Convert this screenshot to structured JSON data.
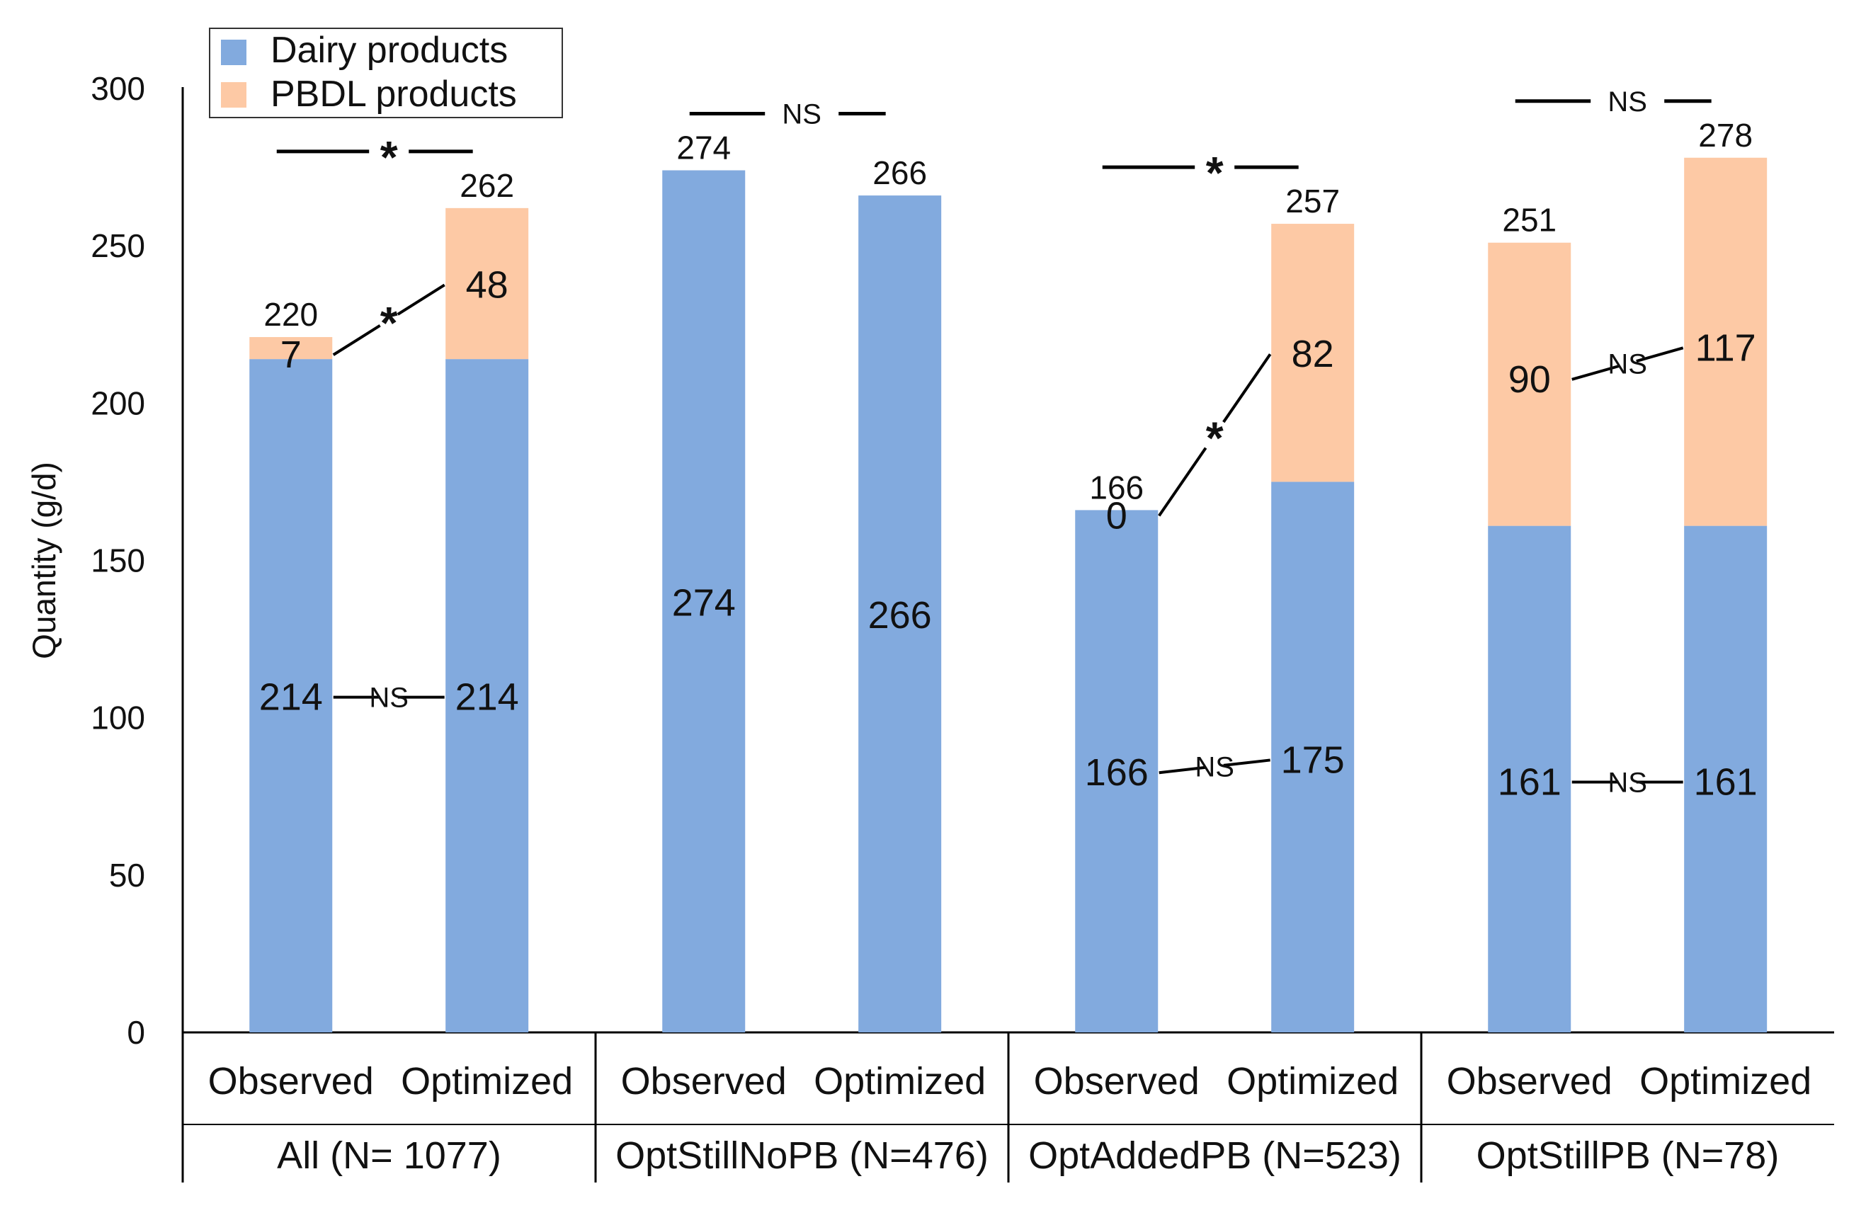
{
  "chart_data": {
    "type": "bar",
    "stacked": true,
    "title": "",
    "xlabel": "",
    "ylabel": "Quantity (g/d)",
    "ylim": [
      0,
      300
    ],
    "yticks": [
      0,
      50,
      100,
      150,
      200,
      250,
      300
    ],
    "legend_position": "top-left",
    "colors": {
      "dairy": "#82AADE",
      "pbdl": "#FDC9A5"
    },
    "groups": [
      {
        "label": "All (N= 1077)",
        "bars": [
          {
            "label": "Observed",
            "dairy": 214,
            "pbdl": 7,
            "dairy_label": "214",
            "pbdl_label": "7",
            "total_label": "220"
          },
          {
            "label": "Optimized",
            "dairy": 214,
            "pbdl": 48,
            "dairy_label": "214",
            "pbdl_label": "48",
            "total_label": "262"
          }
        ]
      },
      {
        "label": "OptStillNoPB (N=476)",
        "bars": [
          {
            "label": "Observed",
            "dairy": 274,
            "pbdl": 0,
            "dairy_label": "274",
            "total_label": "274"
          },
          {
            "label": "Optimized",
            "dairy": 266,
            "pbdl": 0,
            "dairy_label": "266",
            "total_label": "266"
          }
        ]
      },
      {
        "label": "OptAddedPB (N=523)",
        "bars": [
          {
            "label": "Observed",
            "dairy": 166,
            "pbdl": 0,
            "dairy_label": "166",
            "pbdl_label": "0",
            "total_label": "166"
          },
          {
            "label": "Optimized",
            "dairy": 175,
            "pbdl": 82,
            "dairy_label": "175",
            "pbdl_label": "82",
            "total_label": "257"
          }
        ]
      },
      {
        "label": "OptStillPB (N=78)",
        "bars": [
          {
            "label": "Observed",
            "dairy": 161,
            "pbdl": 90,
            "dairy_label": "161",
            "pbdl_label": "90",
            "total_label": "251"
          },
          {
            "label": "Optimized",
            "dairy": 161,
            "pbdl": 117,
            "dairy_label": "161",
            "pbdl_label": "117",
            "total_label": "278"
          }
        ]
      }
    ],
    "series": [
      {
        "name": "Dairy products",
        "key": "dairy"
      },
      {
        "name": "PBDL products",
        "key": "pbdl"
      }
    ],
    "significance": [
      {
        "group": 0,
        "level": "total",
        "mark": "*"
      },
      {
        "group": 0,
        "level": "pbdl",
        "mark": "*"
      },
      {
        "group": 0,
        "level": "dairy",
        "mark": "NS"
      },
      {
        "group": 1,
        "level": "total",
        "mark": "NS"
      },
      {
        "group": 2,
        "level": "total",
        "mark": "*"
      },
      {
        "group": 2,
        "level": "pbdl",
        "mark": "*"
      },
      {
        "group": 2,
        "level": "dairy",
        "mark": "NS"
      },
      {
        "group": 3,
        "level": "total",
        "mark": "NS"
      },
      {
        "group": 3,
        "level": "pbdl",
        "mark": "NS"
      },
      {
        "group": 3,
        "level": "dairy",
        "mark": "NS"
      }
    ]
  }
}
